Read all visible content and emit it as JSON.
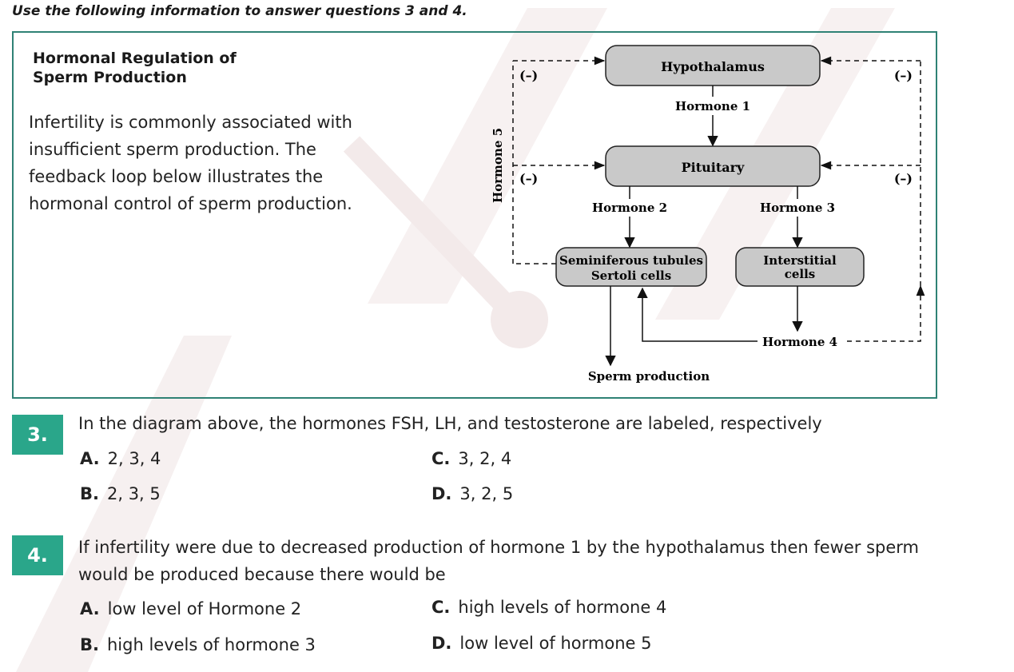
{
  "intro": "Use the following information to answer questions 3 and 4.",
  "box": {
    "title_line1": "Hormonal Regulation of",
    "title_line2": "Sperm Production",
    "paragraph": "Infertility is commonly associated with insufficient sperm production. The feedback loop below illustrates the hormonal control of sperm production."
  },
  "diagram": {
    "hypothalamus": "Hypothalamus",
    "pituitary": "Pituitary",
    "seminiferous_line1": "Seminiferous tubules",
    "seminiferous_line2": "Sertoli cells",
    "interstitial_line1": "Interstitial",
    "interstitial_line2": "cells",
    "hormone1": "Hormone 1",
    "hormone2": "Hormone 2",
    "hormone3": "Hormone 3",
    "hormone4": "Hormone 4",
    "hormone5": "Hormone 5",
    "sperm_production": "Sperm production",
    "negative": "(–)"
  },
  "q3": {
    "number": "3.",
    "text": "In the diagram above, the hormones FSH, LH, and testosterone are labeled, respectively",
    "options": [
      {
        "letter": "A.",
        "text": "2, 3, 4"
      },
      {
        "letter": "B.",
        "text": "2, 3, 5"
      },
      {
        "letter": "C.",
        "text": "3, 2, 4"
      },
      {
        "letter": "D.",
        "text": "3, 2, 5"
      }
    ]
  },
  "q4": {
    "number": "4.",
    "text_line1": "If infertility were due to decreased production of hormone 1 by the hypothalamus then fewer sperm",
    "text_line2": "would be produced because there would be",
    "options": [
      {
        "letter": "A.",
        "text": "low level of Hormone 2"
      },
      {
        "letter": "B.",
        "text": "high levels of hormone 3"
      },
      {
        "letter": "C.",
        "text": "high levels of hormone 4"
      },
      {
        "letter": "D.",
        "text": "low level of hormone 5"
      }
    ]
  },
  "colors": {
    "accent": "#2aa68a",
    "box_border": "#2f8275",
    "node_fill": "#c9c9c9"
  }
}
